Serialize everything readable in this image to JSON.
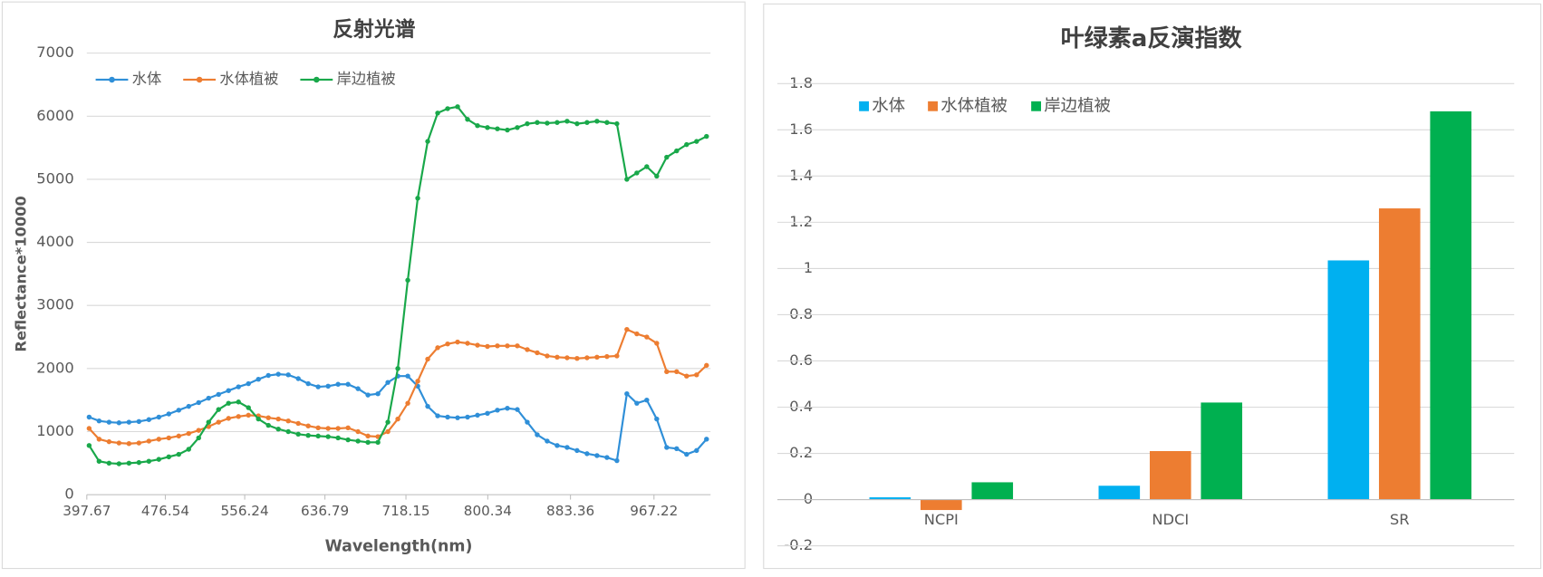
{
  "chart_data": [
    {
      "type": "line",
      "title": "反射光谱",
      "xlabel": "Wavelength(nm)",
      "ylabel": "Reflectance*10000",
      "x": [
        400,
        410,
        420,
        430,
        440,
        450,
        460,
        470,
        480,
        490,
        500,
        510,
        520,
        530,
        540,
        550,
        560,
        570,
        580,
        590,
        600,
        610,
        620,
        630,
        640,
        650,
        660,
        670,
        680,
        690,
        700,
        710,
        720,
        730,
        740,
        750,
        760,
        770,
        780,
        790,
        800,
        810,
        820,
        830,
        840,
        850,
        860,
        870,
        880,
        890,
        900,
        910,
        920,
        930,
        940,
        950,
        960,
        970,
        980,
        990,
        1000,
        1010,
        1020
      ],
      "series": [
        {
          "name": "水体",
          "color": "#2f8fd8",
          "values": [
            1230,
            1170,
            1150,
            1140,
            1150,
            1160,
            1190,
            1230,
            1280,
            1340,
            1400,
            1460,
            1530,
            1590,
            1650,
            1710,
            1760,
            1830,
            1890,
            1910,
            1900,
            1840,
            1760,
            1710,
            1720,
            1750,
            1750,
            1680,
            1580,
            1600,
            1780,
            1880,
            1880,
            1720,
            1400,
            1250,
            1230,
            1220,
            1230,
            1260,
            1290,
            1340,
            1370,
            1350,
            1150,
            950,
            850,
            780,
            750,
            700,
            650,
            620,
            590,
            540,
            1600,
            1450,
            1500,
            1200,
            750,
            730,
            640,
            700,
            880
          ]
        },
        {
          "name": "水体植被",
          "color": "#ed7d31",
          "values": [
            1050,
            880,
            840,
            820,
            810,
            820,
            850,
            880,
            900,
            930,
            970,
            1020,
            1080,
            1150,
            1210,
            1240,
            1260,
            1250,
            1220,
            1200,
            1170,
            1130,
            1090,
            1060,
            1050,
            1050,
            1060,
            1000,
            930,
            920,
            1000,
            1200,
            1450,
            1800,
            2150,
            2330,
            2390,
            2420,
            2400,
            2370,
            2350,
            2360,
            2360,
            2360,
            2300,
            2250,
            2200,
            2180,
            2170,
            2160,
            2170,
            2180,
            2190,
            2200,
            2620,
            2550,
            2500,
            2400,
            1950,
            1950,
            1880,
            1900,
            2050
          ]
        },
        {
          "name": "岸边植被",
          "color": "#19a84a",
          "values": [
            780,
            530,
            500,
            490,
            500,
            510,
            530,
            560,
            600,
            640,
            720,
            900,
            1150,
            1350,
            1450,
            1470,
            1380,
            1200,
            1100,
            1040,
            1000,
            960,
            940,
            930,
            920,
            900,
            870,
            850,
            830,
            830,
            1150,
            2000,
            3400,
            4700,
            5600,
            6050,
            6120,
            6150,
            5950,
            5850,
            5820,
            5800,
            5780,
            5820,
            5880,
            5900,
            5890,
            5900,
            5920,
            5880,
            5900,
            5920,
            5900,
            5880,
            5000,
            5100,
            5200,
            5050,
            5350,
            5450,
            5550,
            5600,
            5680
          ]
        }
      ],
      "xlim": [
        397.67,
        1024
      ],
      "xticks": [
        397.67,
        476.54,
        556.24,
        636.79,
        718.15,
        800.34,
        883.36,
        967.22
      ],
      "ylim": [
        0,
        7000
      ],
      "yticks": [
        0,
        1000,
        2000,
        3000,
        4000,
        5000,
        6000,
        7000
      ],
      "grid": true,
      "legend": "upper left"
    },
    {
      "type": "bar",
      "title": "叶绿素a反演指数",
      "categories": [
        "NCPI",
        "NDCI",
        "SR"
      ],
      "series": [
        {
          "name": "水体",
          "color": "#00b0f0",
          "values": [
            0.01,
            0.06,
            1.035
          ]
        },
        {
          "name": "水体植被",
          "color": "#ed7d31",
          "values": [
            -0.045,
            0.21,
            1.26
          ]
        },
        {
          "name": "岸边植被",
          "color": "#00b050",
          "values": [
            0.075,
            0.42,
            1.68
          ]
        }
      ],
      "ylim": [
        -0.2,
        1.8
      ],
      "yticks": [
        -0.2,
        0,
        0.2,
        0.4,
        0.6,
        0.8,
        1,
        1.2,
        1.4,
        1.6,
        1.8
      ],
      "grid": true,
      "legend": "upper left"
    }
  ]
}
